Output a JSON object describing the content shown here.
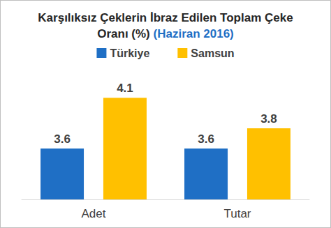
{
  "chart_data": {
    "type": "bar",
    "title": "Karşılıksız Çeklerin İbraz Edilen Toplam Çeke Oranı (%)",
    "subtitle": "(Haziran 2016)",
    "categories": [
      "Adet",
      "Tutar"
    ],
    "series": [
      {
        "name": "Türkiye",
        "color": "#1f6fc5",
        "values": [
          3.6,
          3.6
        ]
      },
      {
        "name": "Samsun",
        "color": "#ffc000",
        "values": [
          4.1,
          3.8
        ]
      }
    ],
    "ylim": [
      3.1,
      4.3
    ],
    "yticks": [
      3.1,
      3.5,
      3.9,
      4.3
    ],
    "grid": false,
    "legend": "top",
    "data_labels": true,
    "tick_labels": "x"
  }
}
